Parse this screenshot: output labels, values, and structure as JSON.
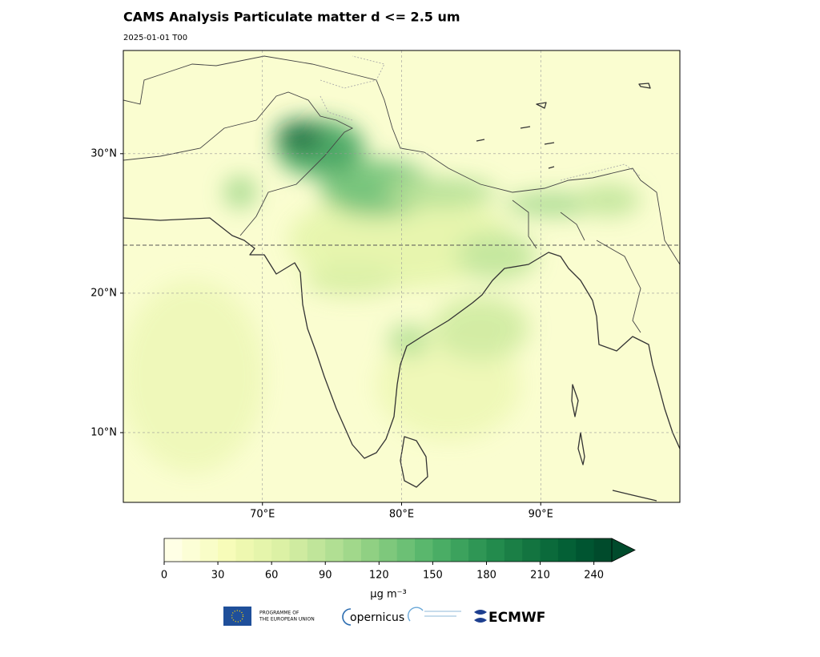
{
  "header": {
    "title": "CAMS Analysis Particulate matter d <= 2.5 um",
    "subtitle": "2025-01-01 T00"
  },
  "map": {
    "xlim": [
      60,
      100
    ],
    "ylim": [
      5,
      37.4
    ],
    "xticks": [
      {
        "value": 70,
        "label": "70°E"
      },
      {
        "value": 80,
        "label": "80°E"
      },
      {
        "value": 90,
        "label": "90°E"
      }
    ],
    "yticks": [
      {
        "value": 10,
        "label": "10°N"
      },
      {
        "value": 20,
        "label": "20°N"
      },
      {
        "value": 30,
        "label": "30°N"
      }
    ],
    "grid": true
  },
  "colorbar": {
    "range": [
      0,
      250
    ],
    "ticks": [
      0,
      30,
      60,
      90,
      120,
      150,
      180,
      210,
      240
    ],
    "label": "μg m⁻³",
    "colors": [
      "#ffffe5",
      "#fcfed6",
      "#f9fdc8",
      "#f7fcb9",
      "#eef8b0",
      "#e5f5ab",
      "#dcf1a5",
      "#cfeba0",
      "#c0e59a",
      "#b1df93",
      "#a1d88b",
      "#90d083",
      "#7ec87c",
      "#6cc075",
      "#5ab76d",
      "#4aad65",
      "#3ca25d",
      "#2f9655",
      "#238b4d",
      "#1b7f46",
      "#137440",
      "#0b6a3b",
      "#046036",
      "#005531",
      "#004b2c"
    ],
    "extend": "max"
  },
  "footer": {
    "eu_line_1": "PROGRAMME OF",
    "eu_line_2": "THE EUROPEAN UNION",
    "copernicus": "opernicus",
    "ecmwf": "ECMWF"
  }
}
